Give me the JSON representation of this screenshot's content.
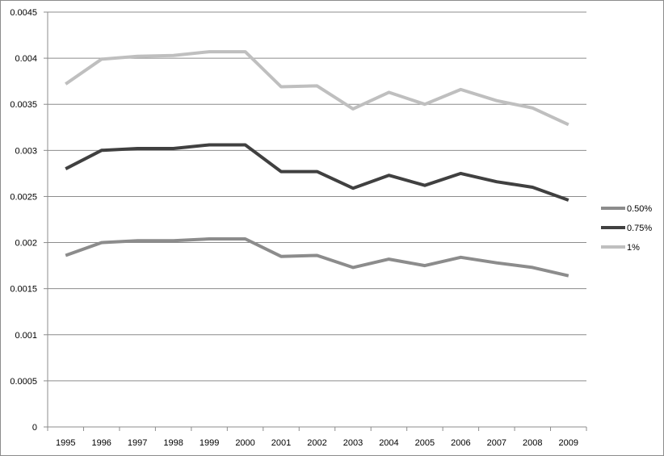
{
  "chart_data": {
    "type": "line",
    "title": "",
    "xlabel": "",
    "ylabel": "",
    "x": [
      "1995",
      "1996",
      "1997",
      "1998",
      "1999",
      "2000",
      "2001",
      "2002",
      "2003",
      "2004",
      "2005",
      "2006",
      "2007",
      "2008",
      "2009"
    ],
    "ylim": [
      0,
      0.0045
    ],
    "yticks": [
      "0",
      "0.0005",
      "0.001",
      "0.0015",
      "0.002",
      "0.0025",
      "0.003",
      "0.0035",
      "0.004",
      "0.0045"
    ],
    "grid": true,
    "legend_position": "right",
    "series": [
      {
        "name": "0.50%",
        "color": "#8c8c8c",
        "values": [
          0.00186,
          0.002,
          0.00202,
          0.00202,
          0.00204,
          0.00204,
          0.00185,
          0.00186,
          0.00173,
          0.00182,
          0.00175,
          0.00184,
          0.00178,
          0.00173,
          0.00164
        ]
      },
      {
        "name": "0.75%",
        "color": "#404040",
        "values": [
          0.0028,
          0.003,
          0.00302,
          0.00302,
          0.00306,
          0.00306,
          0.00277,
          0.00277,
          0.00259,
          0.00273,
          0.00262,
          0.00275,
          0.00266,
          0.0026,
          0.00246
        ]
      },
      {
        "name": "1%",
        "color": "#bfbfbf",
        "values": [
          0.00372,
          0.00399,
          0.00402,
          0.00403,
          0.00407,
          0.00407,
          0.00369,
          0.0037,
          0.00345,
          0.00363,
          0.0035,
          0.00366,
          0.00354,
          0.00346,
          0.00328
        ]
      }
    ]
  }
}
